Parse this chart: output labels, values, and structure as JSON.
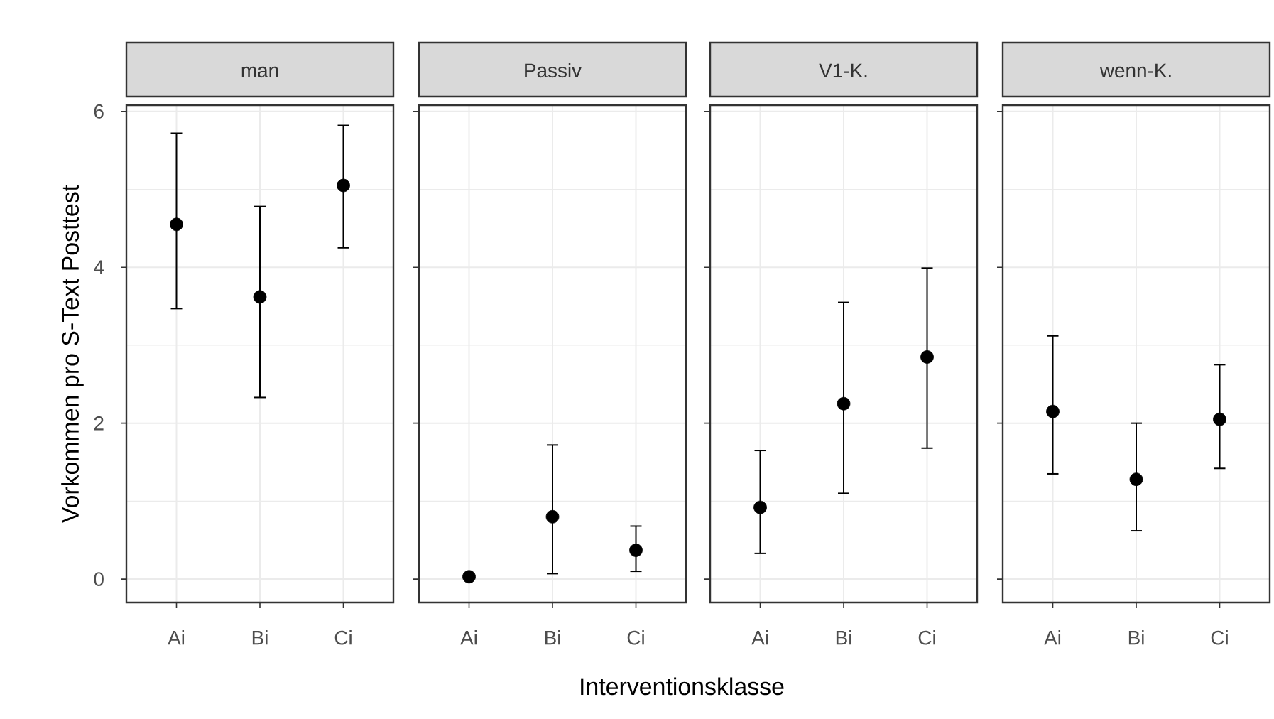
{
  "chart_data": [
    {
      "type": "scatter",
      "title": "man",
      "ylabel": "Vorkommen pro S-Text Posttest",
      "categories": [
        "Ai",
        "Bi",
        "Ci"
      ],
      "values": [
        4.55,
        3.62,
        5.05
      ],
      "errors": [
        [
          3.47,
          5.72
        ],
        [
          2.33,
          4.78
        ],
        [
          4.25,
          5.82
        ]
      ],
      "color": "#000000",
      "marker": "circle",
      "ylim": [
        -0.3,
        6.08
      ],
      "yticks": [
        0,
        2,
        4,
        6
      ],
      "grid": true
    },
    {
      "type": "scatter",
      "title": "Passiv",
      "xlabel": "Interventionsklasse",
      "categories": [
        "Ai",
        "Bi",
        "Ci"
      ],
      "values": [
        0.03,
        0.8,
        0.37
      ],
      "errors": [
        null,
        [
          0.07,
          1.72
        ],
        [
          0.1,
          0.68
        ]
      ],
      "color": "#000000",
      "marker": "circle",
      "ylim": [
        -0.3,
        6.08
      ],
      "yticks": [
        0,
        2,
        4,
        6
      ],
      "grid": true,
      "tick_labels": "x"
    },
    {
      "type": "scatter",
      "title": "V1-K.",
      "categories": [
        "Ai",
        "Bi",
        "Ci"
      ],
      "values": [
        0.92,
        2.25,
        2.85
      ],
      "errors": [
        [
          0.33,
          1.65
        ],
        [
          1.1,
          3.55
        ],
        [
          1.68,
          3.99
        ]
      ],
      "color": "#000000",
      "marker": "circle",
      "ylim": [
        -0.3,
        6.08
      ],
      "yticks": [
        0,
        2,
        4,
        6
      ],
      "grid": true,
      "tick_labels": "x"
    },
    {
      "type": "scatter",
      "title": "wenn-K.",
      "categories": [
        "Ai",
        "Bi",
        "Ci"
      ],
      "values": [
        2.15,
        1.28,
        2.05
      ],
      "errors": [
        [
          1.35,
          3.12
        ],
        [
          0.62,
          2.0
        ],
        [
          1.42,
          2.75
        ]
      ],
      "color": "#000000",
      "marker": "circle",
      "ylim": [
        -0.3,
        6.08
      ],
      "yticks": [
        0,
        2,
        4,
        6
      ],
      "grid": true,
      "tick_labels": "x"
    }
  ]
}
